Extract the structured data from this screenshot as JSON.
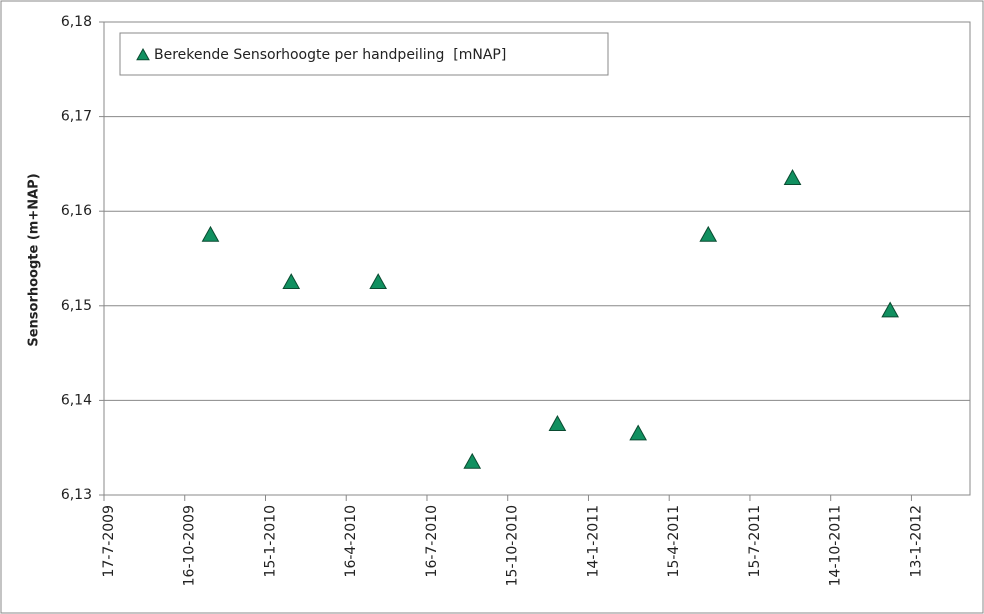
{
  "chart_data": {
    "type": "scatter",
    "y_label": "Sensorhoogte (m+NAP)",
    "series": [
      {
        "name": "Berekende Sensorhoogte per handpeiling  [mNAP]",
        "color": "#119060",
        "marker": "triangle",
        "x": [
          "2009-11-14",
          "2010-02-13",
          "2010-05-22",
          "2010-09-05",
          "2010-12-10",
          "2011-03-11",
          "2011-05-29",
          "2011-09-01",
          "2011-12-20"
        ],
        "values": [
          6.1575,
          6.1525,
          6.1525,
          6.1335,
          6.1375,
          6.1365,
          6.1575,
          6.1635,
          6.1495
        ]
      }
    ],
    "xlim": [
      "2009-07-17",
      "2012-03-19"
    ],
    "xticks": [
      {
        "value": "2009-07-17",
        "label": "17-7-2009"
      },
      {
        "value": "2009-10-16",
        "label": "16-10-2009"
      },
      {
        "value": "2010-01-15",
        "label": "15-1-2010"
      },
      {
        "value": "2010-04-16",
        "label": "16-4-2010"
      },
      {
        "value": "2010-07-16",
        "label": "16-7-2010"
      },
      {
        "value": "2010-10-15",
        "label": "15-10-2010"
      },
      {
        "value": "2011-01-14",
        "label": "14-1-2011"
      },
      {
        "value": "2011-04-15",
        "label": "15-4-2011"
      },
      {
        "value": "2011-07-15",
        "label": "15-7-2011"
      },
      {
        "value": "2011-10-14",
        "label": "14-10-2011"
      },
      {
        "value": "2012-01-13",
        "label": "13-1-2012"
      }
    ],
    "ylim": [
      6.13,
      6.18
    ],
    "yticks": [
      {
        "value": 6.13,
        "label": "6,13"
      },
      {
        "value": 6.14,
        "label": "6,14"
      },
      {
        "value": 6.15,
        "label": "6,15"
      },
      {
        "value": 6.16,
        "label": "6,16"
      },
      {
        "value": 6.17,
        "label": "6,17"
      },
      {
        "value": 6.18,
        "label": "6,18"
      }
    ],
    "grid": true,
    "legend": "top-left"
  }
}
